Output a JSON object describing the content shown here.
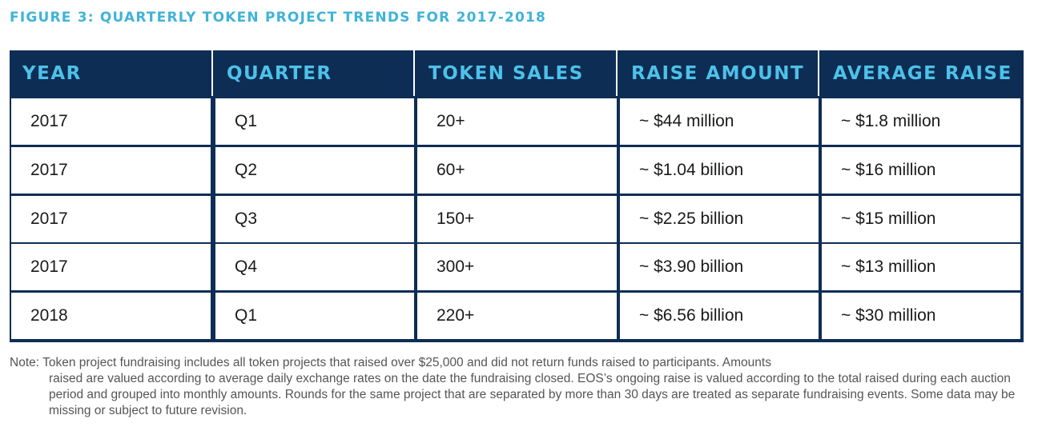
{
  "chart_data": {
    "type": "table",
    "title": "FIGURE 3: QUARTERLY TOKEN PROJECT TRENDS FOR 2017-2018",
    "columns": [
      "YEAR",
      "QUARTER",
      "TOKEN SALES",
      "RAISE AMOUNT",
      "AVERAGE RAISE"
    ],
    "rows": [
      [
        "2017",
        "Q1",
        "20+",
        "~ $44 million",
        "~ $1.8 million"
      ],
      [
        "2017",
        "Q2",
        "60+",
        "~ $1.04 billion",
        "~ $16 million"
      ],
      [
        "2017",
        "Q3",
        "150+",
        "~ $2.25 billion",
        "~ $15 million"
      ],
      [
        "2017",
        "Q4",
        "300+",
        "~ $3.90 billion",
        "~ $13 million"
      ],
      [
        "2018",
        "Q1",
        "220+",
        "~ $6.56 billion",
        "~ $30 million"
      ]
    ],
    "colors": {
      "title": "#3fb3d8",
      "header_bg": "#0e2d54",
      "header_text": "#4dc1e9"
    }
  },
  "note": {
    "first_line": "Note: Token project fundraising includes all token projects that raised over $25,000 and did not return funds raised to participants. Amounts",
    "continuation": "raised are valued according to average daily exchange rates on the date the fundraising closed. EOS’s ongoing raise is valued according to the total raised during each auction period and grouped into monthly amounts. Rounds for the same project that are separated by more than 30 days are treated as separate fundraising events. Some data may be missing or subject to future revision."
  }
}
